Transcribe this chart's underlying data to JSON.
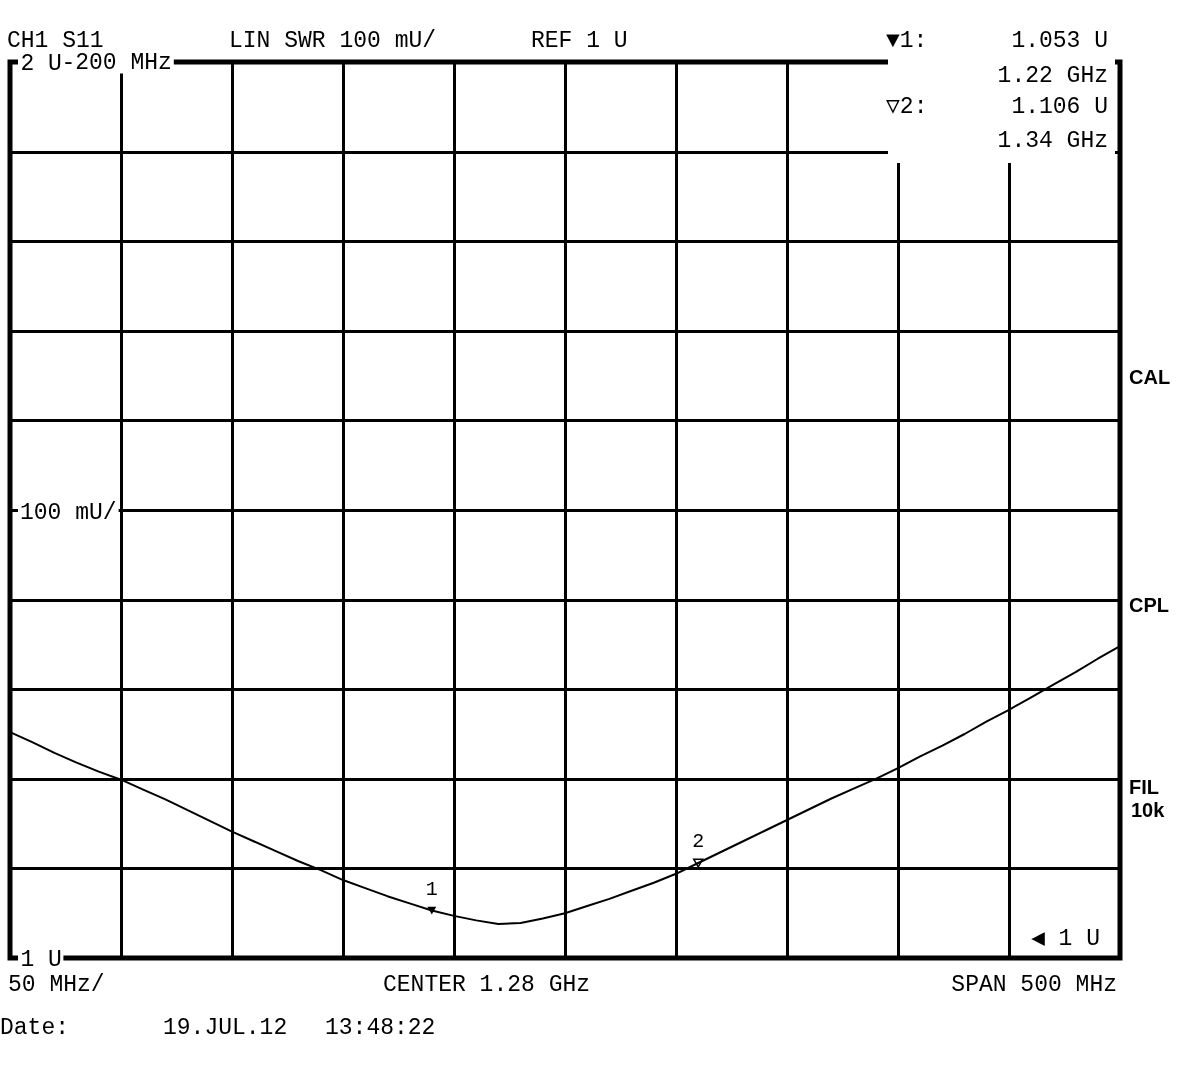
{
  "chart_data": {
    "type": "line",
    "categories": [
      null,
      null,
      null,
      null,
      null,
      null,
      null,
      null,
      null,
      null,
      null,
      null,
      null,
      null,
      null,
      null,
      null,
      null,
      null,
      null,
      null,
      null,
      null,
      null,
      null,
      null,
      null,
      null,
      null,
      null,
      null,
      null,
      null,
      null,
      null,
      null,
      null,
      null,
      null,
      null,
      null,
      null,
      null,
      null,
      null,
      null,
      null,
      null,
      null,
      null,
      null
    ],
    "series": [
      {
        "color": "#000000",
        "values": [
          1.252,
          1.241,
          1.229,
          1.218,
          1.208,
          1.199,
          1.188,
          1.177,
          1.165,
          1.153,
          1.141,
          1.13,
          1.119,
          1.108,
          1.098,
          1.087,
          1.078,
          1.069,
          1.061,
          1.053,
          1.047,
          1.042,
          1.038,
          1.039,
          1.044,
          1.05,
          1.058,
          1.066,
          1.075,
          1.084,
          1.094,
          1.106,
          1.118,
          1.13,
          1.142,
          1.154,
          1.166,
          1.178,
          1.189,
          1.2,
          1.212,
          1.225,
          1.237,
          1.25,
          1.264,
          1.277,
          1.291,
          1.305,
          1.319,
          1.334,
          1.348
        ]
      },
      {
        "type": "scatter",
        "name": "1",
        "color": "#000000",
        "marker": "triangle",
        "values": [
          null,
          null,
          null,
          null,
          null,
          null,
          null,
          null,
          null,
          null,
          null,
          null,
          null,
          null,
          null,
          null,
          null,
          null,
          null,
          1.053,
          null,
          null,
          null,
          null,
          null,
          null,
          null,
          null,
          null,
          null,
          null,
          null,
          null,
          null,
          null,
          null,
          null,
          null,
          null,
          null,
          null,
          null,
          null,
          null,
          null,
          null,
          null,
          null,
          null,
          null,
          null
        ]
      },
      {
        "type": "scatter",
        "name": "2",
        "color": "#000000",
        "marker": "triangle",
        "values": [
          null,
          null,
          null,
          null,
          null,
          null,
          null,
          null,
          null,
          null,
          null,
          null,
          null,
          null,
          null,
          null,
          null,
          null,
          null,
          null,
          null,
          null,
          null,
          null,
          null,
          null,
          null,
          null,
          null,
          null,
          null,
          1.106,
          null,
          null,
          null,
          null,
          null,
          null,
          null,
          null,
          null,
          null,
          null,
          null,
          null,
          null,
          null,
          null,
          null,
          null,
          null
        ]
      }
    ],
    "ylim": [
      1,
      2
    ],
    "yticks": [
      {
        "value": 1,
        "label": "1 U"
      },
      {
        "value": 1.1,
        "label": null
      },
      {
        "value": 1.2,
        "label": null
      },
      {
        "value": 1.3,
        "label": null
      },
      {
        "value": 1.4,
        "label": null
      },
      {
        "value": 1.5,
        "label": null
      },
      {
        "value": 1.6,
        "label": null
      },
      {
        "value": 1.7,
        "label": null
      },
      {
        "value": 1.8,
        "label": null
      },
      {
        "value": 1.9,
        "label": null
      },
      {
        "value": 2,
        "label": "2 U"
      }
    ],
    "tick_labels": "y",
    "grid": true,
    "annotations": [
      "CH1 S11",
      "LIN SWR 100 mU/",
      "REF 1 U",
      "▼1:",
      "1.053 U",
      "1.22 GHz",
      "▽2:",
      "1.106 U",
      "1.34 GHz",
      "CAL",
      "CPL",
      "FIL",
      "10k",
      "100 mU/",
      "◀ 1 U",
      "50 MHz/",
      "CENTER 1.28 GHz",
      "SPAN 500 MHz",
      "Date:",
      "19.JUL.12",
      "13:48:22",
      "-200 MHz"
    ]
  }
}
